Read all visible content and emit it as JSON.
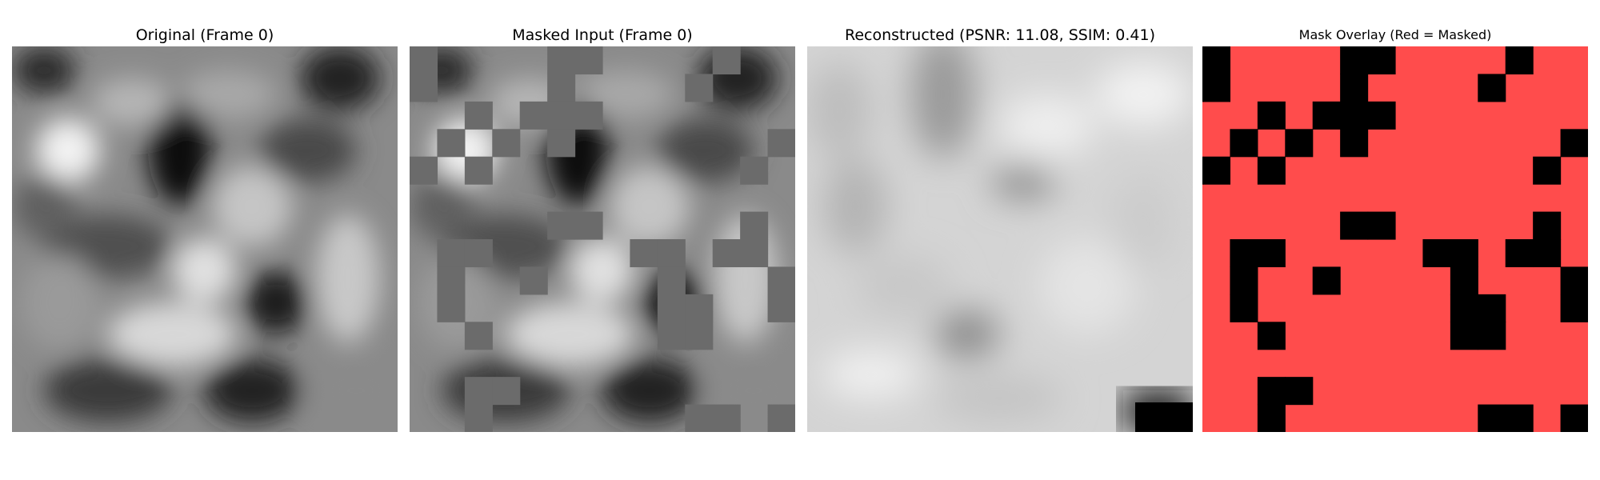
{
  "figure": {
    "panels": [
      {
        "title": "Original (Frame 0)"
      },
      {
        "title": "Masked Input (Frame 0)"
      },
      {
        "title": "Reconstructed (PSNR: 11.08, SSIM: 0.41)"
      },
      {
        "title": "Mask Overlay (Red = Masked)"
      }
    ],
    "colors": {
      "masked_fill": "#6b6b6b",
      "overlay_red": "#ff4c4c",
      "overlay_visible": "#000000"
    }
  }
}
